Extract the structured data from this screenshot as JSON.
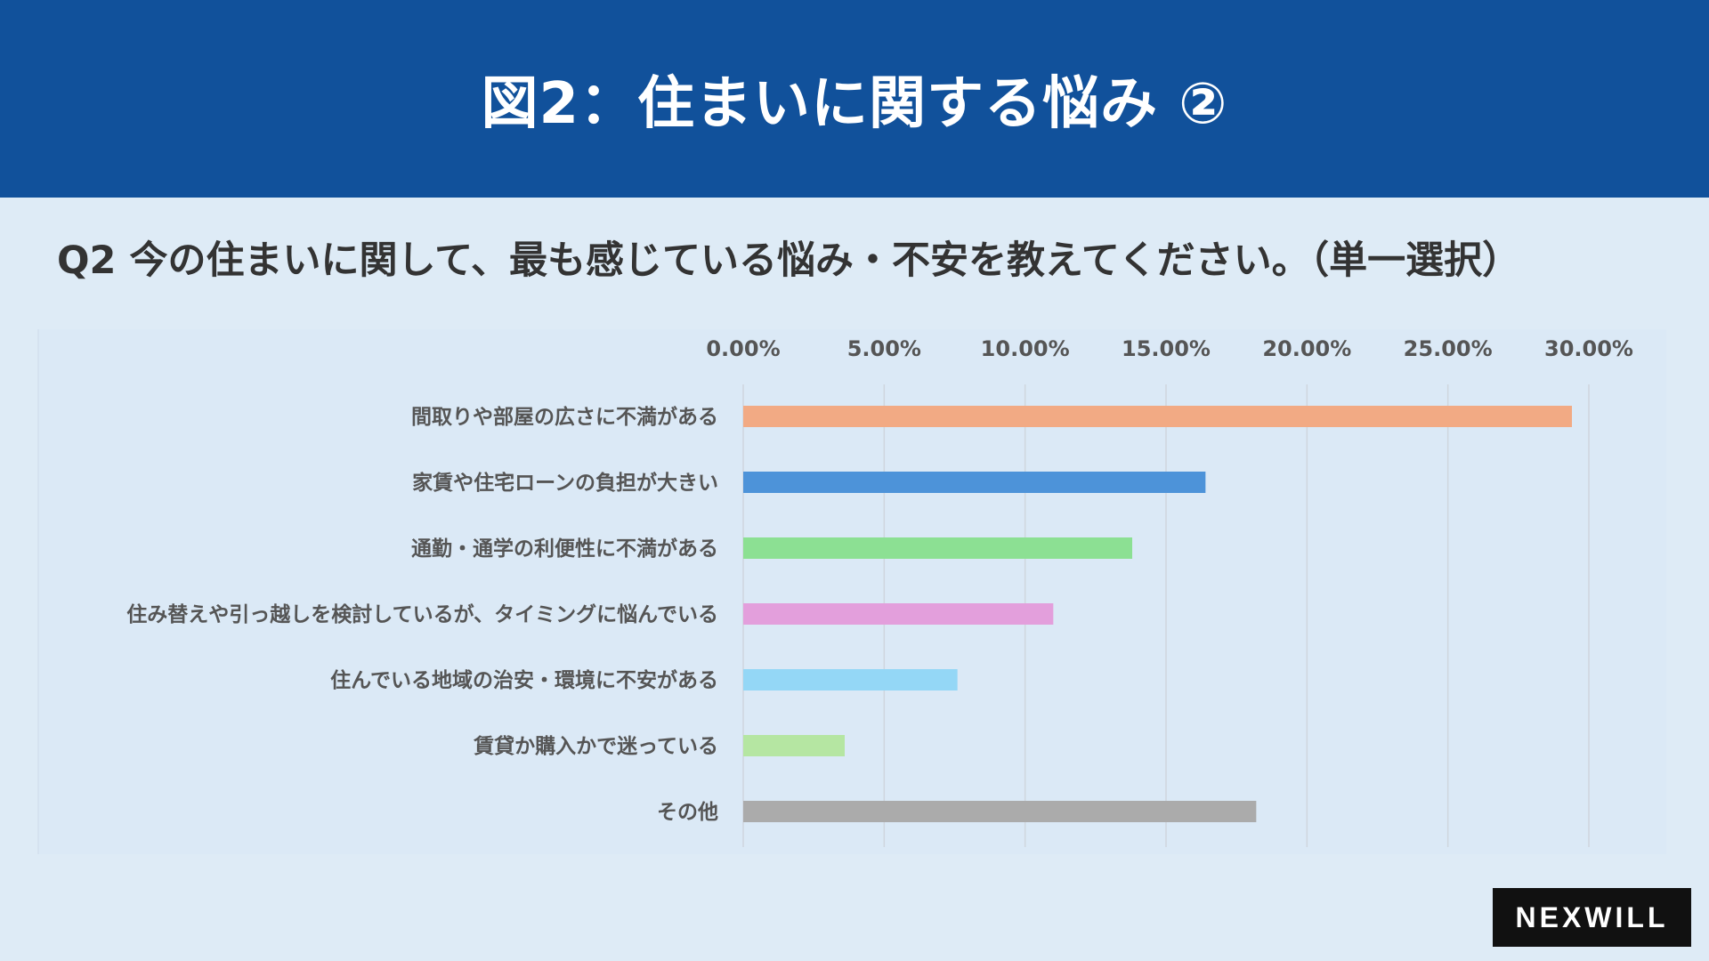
{
  "header": {
    "title": "図2：住まいに関する悩み ②"
  },
  "question": "Q2 今の住まいに関して、最も感じている悩み・不安を教えてください。（単一選択）",
  "logo": "NEXWILL",
  "chart_data": {
    "type": "bar",
    "orientation": "horizontal",
    "categories": [
      "間取りや部屋の広さに不満がある",
      "家賃や住宅ローンの負担が大きい",
      "通勤・通学の利便性に不満がある",
      "住み替えや引っ越しを検討しているが、タイミングに悩んでいる",
      "住んでいる地域の治安・環境に不安がある",
      "賃貸か購入かで迷っている",
      "その他"
    ],
    "values": [
      29.4,
      16.4,
      13.8,
      11.0,
      7.6,
      3.6,
      18.2
    ],
    "colors": [
      "#f2aa84",
      "#4d93d9",
      "#8ce093",
      "#e39fdc",
      "#94d7f6",
      "#b5e6a2",
      "#ababab"
    ],
    "xticks": [
      "0.00%",
      "5.00%",
      "10.00%",
      "15.00%",
      "20.00%",
      "25.00%",
      "30.00%"
    ],
    "xlim": [
      0,
      30
    ],
    "axis_position": "top",
    "grid": true,
    "legend": false
  }
}
